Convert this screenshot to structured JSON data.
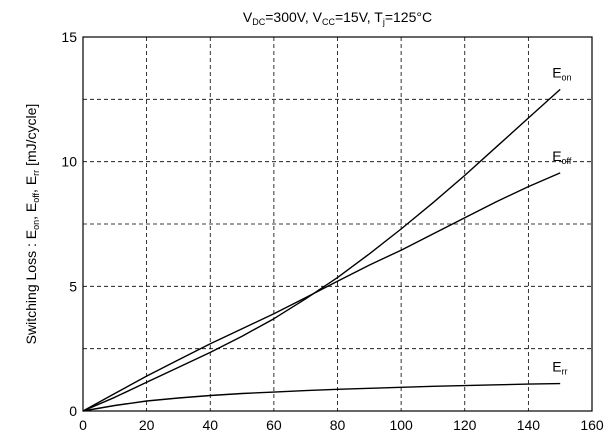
{
  "chart_data": {
    "type": "line",
    "title": {
      "parts": [
        {
          "text": "V",
          "sub": "DC"
        },
        {
          "text": "=300V, V",
          "sub": "CC"
        },
        {
          "text": "=15V, T",
          "sub": "j"
        },
        {
          "text": "=125°C",
          "sub": ""
        }
      ]
    },
    "ylabel": {
      "parts": [
        {
          "text": "Switching Loss : E",
          "sub": "on"
        },
        {
          "text": ", E",
          "sub": "off"
        },
        {
          "text": ", E",
          "sub": "rr"
        },
        {
          "text": " [mJ/cycle]",
          "sub": ""
        }
      ]
    },
    "xlabel": "",
    "xlim": [
      0,
      160
    ],
    "ylim": [
      0,
      15
    ],
    "x_ticks": [
      0,
      20,
      40,
      60,
      80,
      100,
      120,
      140,
      160
    ],
    "y_ticks": [
      0,
      5,
      10,
      15
    ],
    "grid": true,
    "series": [
      {
        "name": "E",
        "name_sub": "on",
        "x": [
          0,
          10,
          20,
          30,
          40,
          50,
          60,
          70,
          80,
          90,
          100,
          110,
          120,
          130,
          140,
          150
        ],
        "values": [
          0,
          0.55,
          1.15,
          1.75,
          2.35,
          3.0,
          3.7,
          4.5,
          5.35,
          6.3,
          7.3,
          8.35,
          9.45,
          10.6,
          11.75,
          12.9
        ]
      },
      {
        "name": "E",
        "name_sub": "off",
        "x": [
          0,
          10,
          20,
          30,
          40,
          50,
          60,
          70,
          80,
          90,
          100,
          110,
          120,
          130,
          140,
          150
        ],
        "values": [
          0,
          0.7,
          1.4,
          2.05,
          2.7,
          3.3,
          3.9,
          4.55,
          5.2,
          5.85,
          6.45,
          7.1,
          7.75,
          8.4,
          9.0,
          9.55
        ]
      },
      {
        "name": "E",
        "name_sub": "rr",
        "x": [
          0,
          10,
          20,
          30,
          40,
          50,
          60,
          70,
          80,
          90,
          100,
          110,
          120,
          130,
          140,
          150
        ],
        "values": [
          0,
          0.22,
          0.4,
          0.52,
          0.62,
          0.7,
          0.76,
          0.82,
          0.87,
          0.91,
          0.95,
          0.99,
          1.02,
          1.05,
          1.08,
          1.1
        ]
      }
    ]
  }
}
